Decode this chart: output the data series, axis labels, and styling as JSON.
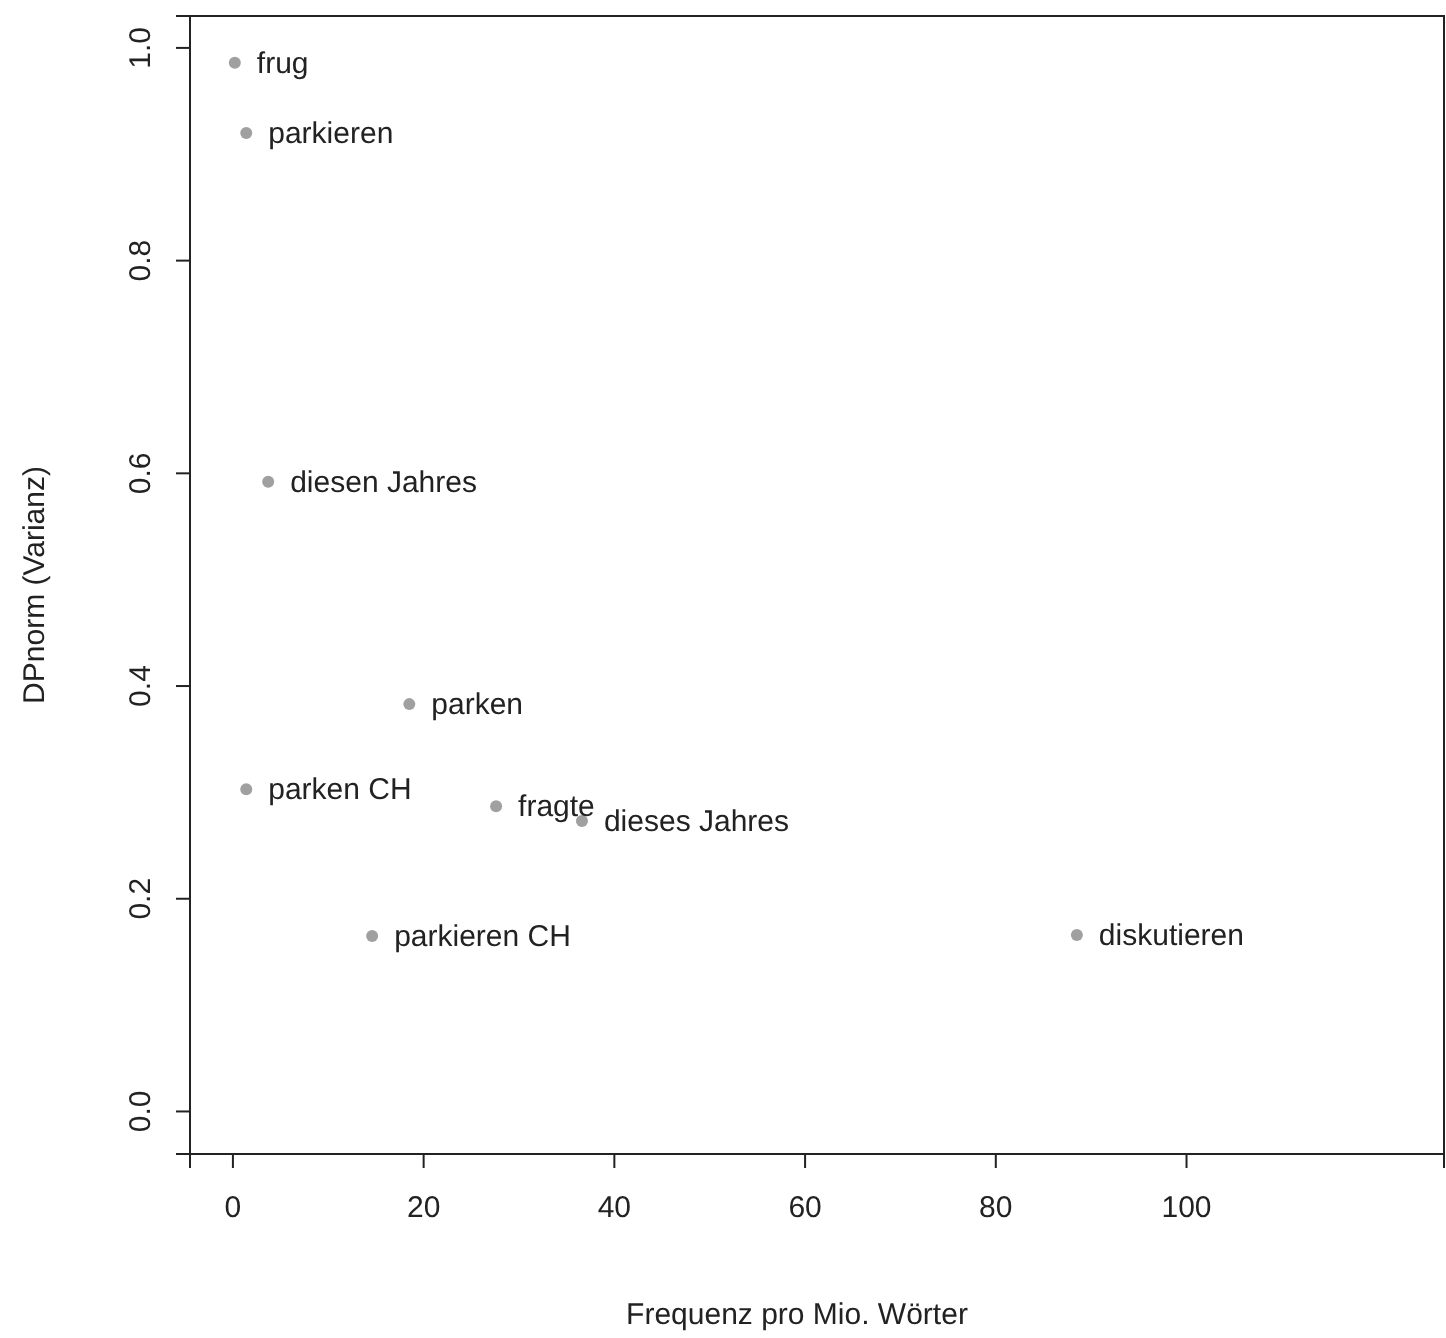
{
  "chart_data": {
    "type": "scatter",
    "xlabel": "Frequenz pro Mio. Wörter",
    "ylabel": "DPnorm (Varianz)",
    "x": [
      0.2,
      1.4,
      3.7,
      18.5,
      1.4,
      27.6,
      36.6,
      14.6,
      88.5
    ],
    "series": [
      {
        "color": "#a0a0a0",
        "values": [
          0.986,
          0.92,
          0.592,
          0.383,
          0.303,
          0.287,
          0.273,
          0.165,
          0.166
        ]
      }
    ],
    "annotations": [
      {
        "text": "frug",
        "x": 0.2,
        "y": 0.986
      },
      {
        "text": "parkieren",
        "x": 1.4,
        "y": 0.92
      },
      {
        "text": "diesen Jahres",
        "x": 3.7,
        "y": 0.592
      },
      {
        "text": "parken",
        "x": 18.5,
        "y": 0.383
      },
      {
        "text": "parken CH",
        "x": 1.4,
        "y": 0.303
      },
      {
        "text": "fragte",
        "x": 27.6,
        "y": 0.287
      },
      {
        "text": "dieses Jahres",
        "x": 36.6,
        "y": 0.273
      },
      {
        "text": "parkieren CH",
        "x": 14.6,
        "y": 0.165
      },
      {
        "text": "diskutieren",
        "x": 88.5,
        "y": 0.166
      }
    ],
    "xlim": [
      -4.5,
      127
    ],
    "ylim": [
      -0.04,
      1.03
    ],
    "xticks": [
      0,
      20,
      40,
      60,
      80,
      100
    ],
    "yticks": [
      {
        "value": 0,
        "label": "0.0"
      },
      {
        "value": 0.2,
        "label": "0.2"
      },
      {
        "value": 0.4,
        "label": "0.4"
      },
      {
        "value": 0.6,
        "label": "0.6"
      },
      {
        "value": 0.8,
        "label": "0.8"
      },
      {
        "value": 1,
        "label": "1.0"
      }
    ],
    "marker": "circle",
    "grid": false
  }
}
